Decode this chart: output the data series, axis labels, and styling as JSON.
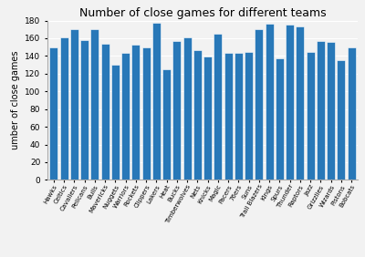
{
  "title": "Number of close games for different teams",
  "ylabel": "umber of close games",
  "teams": [
    "Hawks",
    "Celtics",
    "Cavaliers",
    "Pelicans",
    "Bulls",
    "Mavericks",
    "Nuggets",
    "Warriors",
    "Rockets",
    "Clippers",
    "Lakers",
    "Heat",
    "Bucks",
    "Timberwolves",
    "Nets",
    "Knicks",
    "Magic",
    "Pacers",
    "76ers",
    "Suns",
    "Trail Blazers",
    "Kings",
    "Spurs",
    "Thunder",
    "Raptors",
    "Jazz",
    "Grizzlies",
    "Wizards",
    "Pistons",
    "Bobcats"
  ],
  "values": [
    150,
    161,
    170,
    158,
    170,
    154,
    130,
    144,
    153,
    150,
    178,
    125,
    157,
    161,
    147,
    139,
    165,
    144,
    144,
    145,
    170,
    176,
    137,
    175,
    173,
    145,
    157,
    156,
    135,
    150
  ],
  "bar_color": "#2878b8",
  "ylim": [
    0,
    180
  ],
  "yticks": [
    0,
    20,
    40,
    60,
    80,
    100,
    120,
    140,
    160,
    180
  ],
  "bg_color": "#f2f2f2",
  "title_fontsize": 9,
  "label_fontsize": 7,
  "tick_fontsize": 6.5,
  "xtick_fontsize": 5.0
}
